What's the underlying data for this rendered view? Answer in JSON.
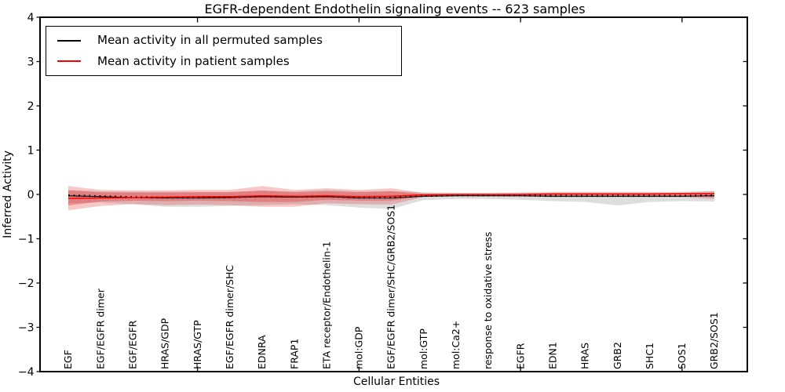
{
  "chart_data": {
    "type": "line",
    "title": "EGFR-dependent Endothelin signaling events -- 623 samples",
    "xlabel": "Cellular Entities",
    "ylabel": "Inferred Activity",
    "ylim": [
      -4,
      4
    ],
    "grid": false,
    "yticks": [
      {
        "value": 4,
        "label": "4"
      },
      {
        "value": 3,
        "label": "3"
      },
      {
        "value": 2,
        "label": "2"
      },
      {
        "value": 1,
        "label": "1"
      },
      {
        "value": 0,
        "label": "0"
      },
      {
        "value": -1,
        "label": "−1"
      },
      {
        "value": -2,
        "label": "−2"
      },
      {
        "value": -3,
        "label": "−3"
      },
      {
        "value": -4,
        "label": "−4"
      }
    ],
    "x_axis_tick_indices": [
      4,
      9,
      14,
      19
    ],
    "categories": [
      "EGF",
      "EGF/EGFR dimer",
      "EGF/EGFR",
      "HRAS/GDP",
      "HRAS/GTP",
      "EGF/EGFR dimer/SHC",
      "EDNRA",
      "FRAP1",
      "ETA receptor/Endothelin-1",
      "mol:GDP",
      "EGF/EGFR dimer/SHC/GRB2/SOS1",
      "mol:GTP",
      "mol:Ca2+",
      "response to oxidative stress",
      "EGFR",
      "EDN1",
      "HRAS",
      "GRB2",
      "SHC1",
      "SOS1",
      "GRB2/SOS1"
    ],
    "legend": {
      "position": "upper left",
      "items": [
        {
          "label": "Mean activity in all permuted samples",
          "color": "#000000"
        },
        {
          "label": "Mean activity in patient samples",
          "color": "#ff0000"
        }
      ]
    },
    "series": [
      {
        "name": "Mean activity in all permuted samples",
        "color": "#000000",
        "line_style": "solid with small square markers",
        "values": [
          -0.03,
          -0.05,
          -0.07,
          -0.08,
          -0.08,
          -0.07,
          -0.05,
          -0.06,
          -0.05,
          -0.08,
          -0.08,
          -0.04,
          -0.03,
          -0.03,
          -0.03,
          -0.04,
          -0.04,
          -0.04,
          -0.04,
          -0.04,
          -0.03
        ]
      },
      {
        "name": "Mean activity in patient samples",
        "color": "#ff0000",
        "line_style": "solid",
        "values": [
          -0.09,
          -0.08,
          -0.07,
          -0.06,
          -0.05,
          -0.05,
          -0.03,
          -0.04,
          -0.03,
          -0.05,
          -0.04,
          -0.01,
          0.0,
          0.0,
          0.0,
          0.01,
          0.01,
          0.01,
          0.01,
          0.02,
          0.02
        ]
      }
    ],
    "bands": [
      {
        "name": "permuted samples activity range",
        "color": "rgba(125,125,125,0.25)",
        "upper": [
          0.1,
          0.07,
          0.06,
          0.06,
          0.06,
          0.06,
          0.08,
          0.07,
          0.1,
          0.07,
          0.08,
          0.05,
          0.04,
          0.04,
          0.05,
          0.06,
          0.06,
          0.06,
          0.06,
          0.06,
          0.08
        ],
        "lower": [
          -0.2,
          -0.18,
          -0.22,
          -0.28,
          -0.28,
          -0.26,
          -0.24,
          -0.22,
          -0.24,
          -0.3,
          -0.33,
          -0.13,
          -0.1,
          -0.1,
          -0.12,
          -0.15,
          -0.17,
          -0.25,
          -0.17,
          -0.15,
          -0.16
        ]
      },
      {
        "name": "patient samples activity range (outer)",
        "color": "rgba(228,30,30,0.25)",
        "upper": [
          0.19,
          0.1,
          0.09,
          0.09,
          0.1,
          0.1,
          0.19,
          0.1,
          0.14,
          0.1,
          0.14,
          0.03,
          0.02,
          0.02,
          0.03,
          0.04,
          0.04,
          0.04,
          0.04,
          0.04,
          0.07
        ],
        "lower": [
          -0.36,
          -0.26,
          -0.22,
          -0.24,
          -0.23,
          -0.24,
          -0.28,
          -0.28,
          -0.2,
          -0.22,
          -0.23,
          -0.06,
          -0.04,
          -0.04,
          -0.05,
          -0.06,
          -0.06,
          -0.06,
          -0.06,
          -0.06,
          -0.1
        ]
      },
      {
        "name": "patient samples activity range (inner)",
        "color": "rgba(228,30,30,0.32)",
        "upper": [
          0.09,
          0.05,
          0.045,
          0.045,
          0.05,
          0.05,
          0.09,
          0.05,
          0.07,
          0.05,
          0.07,
          0.015,
          0.01,
          0.01,
          0.015,
          0.02,
          0.02,
          0.02,
          0.02,
          0.02,
          0.035
        ],
        "lower": [
          -0.25,
          -0.16,
          -0.14,
          -0.15,
          -0.14,
          -0.15,
          -0.17,
          -0.17,
          -0.12,
          -0.14,
          -0.14,
          -0.04,
          -0.025,
          -0.025,
          -0.03,
          -0.04,
          -0.04,
          -0.04,
          -0.04,
          -0.04,
          -0.06
        ]
      }
    ]
  }
}
